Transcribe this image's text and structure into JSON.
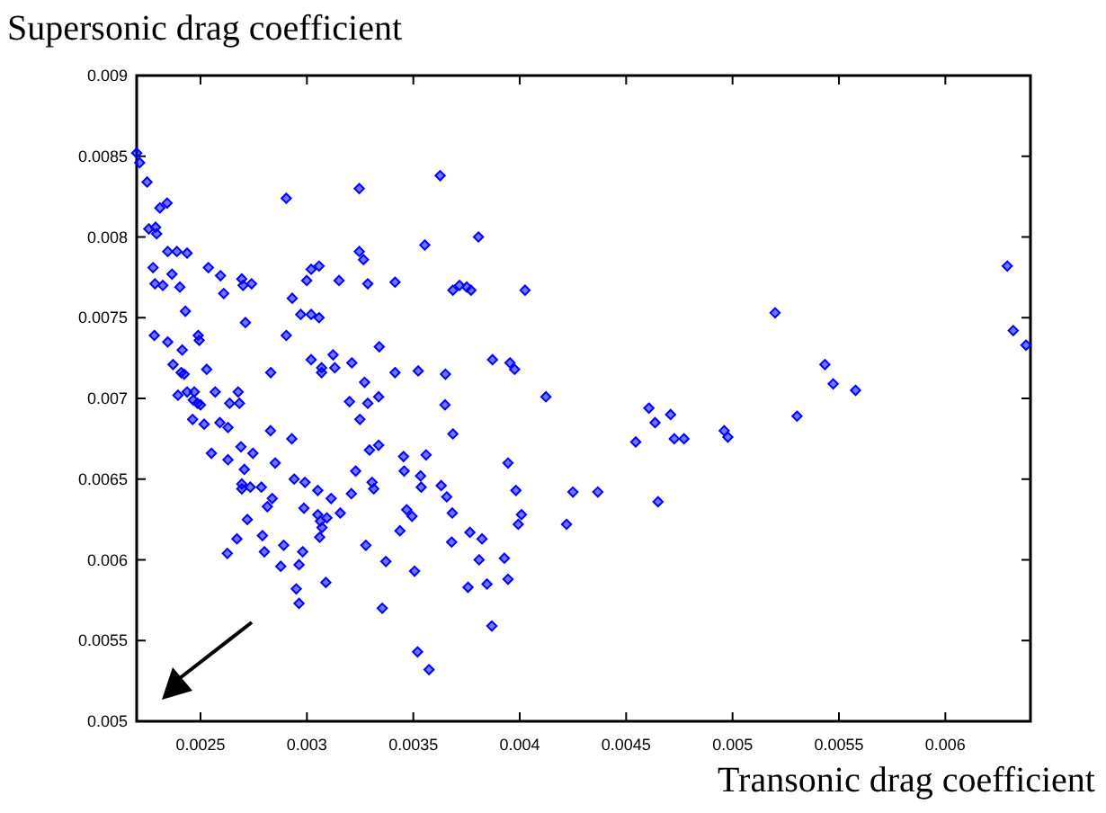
{
  "chart_data": {
    "type": "scatter",
    "xlabel": "Transonic drag coefficient",
    "ylabel": "Supersonic drag coefficient",
    "xlim": [
      0.0022,
      0.0064
    ],
    "ylim": [
      0.005,
      0.009
    ],
    "xticks": [
      0.0025,
      0.003,
      0.0035,
      0.004,
      0.0045,
      0.005,
      0.0055,
      0.006
    ],
    "yticks": [
      0.005,
      0.0055,
      0.006,
      0.0065,
      0.007,
      0.0075,
      0.008,
      0.0085,
      0.009
    ],
    "grid": false,
    "marker": "diamond",
    "series": [
      {
        "color": "#0000ff",
        "x": [
          0.0022,
          0.002214,
          0.002249,
          0.002343,
          0.002309,
          0.002257,
          0.002289,
          0.002294,
          0.002346,
          0.002389,
          0.002437,
          0.002277,
          0.002366,
          0.002286,
          0.002323,
          0.002403,
          0.002429,
          0.002283,
          0.002346,
          0.002414,
          0.002371,
          0.002409,
          0.002423,
          0.002489,
          0.002494,
          0.002529,
          0.002537,
          0.002594,
          0.002609,
          0.002694,
          0.0027,
          0.00274,
          0.002711,
          0.00283,
          0.002903,
          0.002903,
          0.002931,
          0.002999,
          0.00302,
          0.003057,
          0.002971,
          0.00302,
          0.003057,
          0.00302,
          0.003069,
          0.003069,
          0.003123,
          0.003131,
          0.003151,
          0.003211,
          0.003246,
          0.003246,
          0.003266,
          0.003286,
          0.00334,
          0.003414,
          0.003414,
          0.003271,
          0.003523,
          0.003554,
          0.003626,
          0.003651,
          0.003686,
          0.003717,
          0.003751,
          0.003771,
          0.002394,
          0.002437,
          0.002471,
          0.002466,
          0.002486,
          0.0025,
          0.002569,
          0.002637,
          0.002677,
          0.002683,
          0.002463,
          0.002517,
          0.002591,
          0.002629,
          0.002551,
          0.002629,
          0.00269,
          0.002746,
          0.002706,
          0.002694,
          0.002694,
          0.002734,
          0.002786,
          0.002829,
          0.002851,
          0.002837,
          0.002814,
          0.002929,
          0.00294,
          0.002991,
          0.002986,
          0.003051,
          0.003051,
          0.003063,
          0.003071,
          0.00306,
          0.003094,
          0.003114,
          0.003157,
          0.00272,
          0.002671,
          0.002626,
          0.002791,
          0.0028,
          0.002891,
          0.002877,
          0.00298,
          0.002963,
          0.00295,
          0.002963,
          0.003089,
          0.0032,
          0.003286,
          0.003249,
          0.003337,
          0.003294,
          0.003337,
          0.003229,
          0.003209,
          0.003306,
          0.003314,
          0.003277,
          0.003371,
          0.003354,
          0.003437,
          0.003454,
          0.003457,
          0.003469,
          0.003494,
          0.003506,
          0.003534,
          0.003537,
          0.00356,
          0.003631,
          0.003657,
          0.003649,
          0.003686,
          0.003683,
          0.00368,
          0.003766,
          0.003757,
          0.00352,
          0.003574,
          0.003806,
          0.004025,
          0.0052,
          0.003872,
          0.003954,
          0.003976,
          0.004123,
          0.004607,
          0.004636,
          0.004709,
          0.004545,
          0.004726,
          0.004772,
          0.004961,
          0.004978,
          0.005303,
          0.003945,
          0.003982,
          0.00425,
          0.004367,
          0.00465,
          0.004008,
          0.003993,
          0.00422,
          0.003823,
          0.003809,
          0.003928,
          0.003846,
          0.003945,
          0.003869,
          0.005434,
          0.005473,
          0.005578,
          0.006291,
          0.006319,
          0.006379
        ],
        "values": [
          0.00852,
          0.00846,
          0.00834,
          0.00821,
          0.00818,
          0.00805,
          0.00806,
          0.00802,
          0.00791,
          0.00791,
          0.0079,
          0.00781,
          0.00777,
          0.00771,
          0.0077,
          0.00769,
          0.00754,
          0.00739,
          0.00735,
          0.0073,
          0.00721,
          0.00716,
          0.00715,
          0.00739,
          0.00736,
          0.00718,
          0.00781,
          0.00776,
          0.00765,
          0.00774,
          0.0077,
          0.00771,
          0.00747,
          0.00716,
          0.00824,
          0.00739,
          0.00762,
          0.00773,
          0.0078,
          0.00782,
          0.00752,
          0.00752,
          0.0075,
          0.00724,
          0.00719,
          0.00716,
          0.00727,
          0.00719,
          0.00773,
          0.00722,
          0.0083,
          0.00791,
          0.00786,
          0.00771,
          0.00732,
          0.00772,
          0.00716,
          0.0071,
          0.00717,
          0.00795,
          0.00838,
          0.00715,
          0.00767,
          0.0077,
          0.00769,
          0.00767,
          0.00702,
          0.00704,
          0.00704,
          0.00699,
          0.00697,
          0.00696,
          0.00704,
          0.00697,
          0.00704,
          0.00697,
          0.00687,
          0.00684,
          0.00685,
          0.00682,
          0.00666,
          0.00662,
          0.0067,
          0.00666,
          0.00656,
          0.00647,
          0.00644,
          0.00645,
          0.00645,
          0.0068,
          0.0066,
          0.00638,
          0.00633,
          0.00675,
          0.0065,
          0.00648,
          0.00632,
          0.00643,
          0.00628,
          0.00624,
          0.0062,
          0.00614,
          0.00626,
          0.00638,
          0.00629,
          0.00625,
          0.00613,
          0.00604,
          0.00615,
          0.00605,
          0.00609,
          0.00596,
          0.00605,
          0.00597,
          0.00582,
          0.00573,
          0.00586,
          0.00698,
          0.00697,
          0.00687,
          0.00701,
          0.00668,
          0.00671,
          0.00655,
          0.00641,
          0.00648,
          0.00644,
          0.00609,
          0.00599,
          0.0057,
          0.00618,
          0.00664,
          0.00655,
          0.00631,
          0.00627,
          0.00593,
          0.00652,
          0.00645,
          0.00665,
          0.00646,
          0.00639,
          0.00696,
          0.00678,
          0.00629,
          0.00611,
          0.00617,
          0.00583,
          0.00543,
          0.00532,
          0.008,
          0.00767,
          0.00753,
          0.00724,
          0.00722,
          0.00718,
          0.00701,
          0.00694,
          0.00685,
          0.0069,
          0.00673,
          0.00675,
          0.00675,
          0.0068,
          0.00676,
          0.00689,
          0.0066,
          0.00643,
          0.00642,
          0.00642,
          0.00636,
          0.00628,
          0.00622,
          0.00622,
          0.00613,
          0.006,
          0.00601,
          0.00585,
          0.00588,
          0.00559,
          0.00721,
          0.00709,
          0.00705,
          0.00782,
          0.00742,
          0.00733
        ]
      }
    ]
  }
}
